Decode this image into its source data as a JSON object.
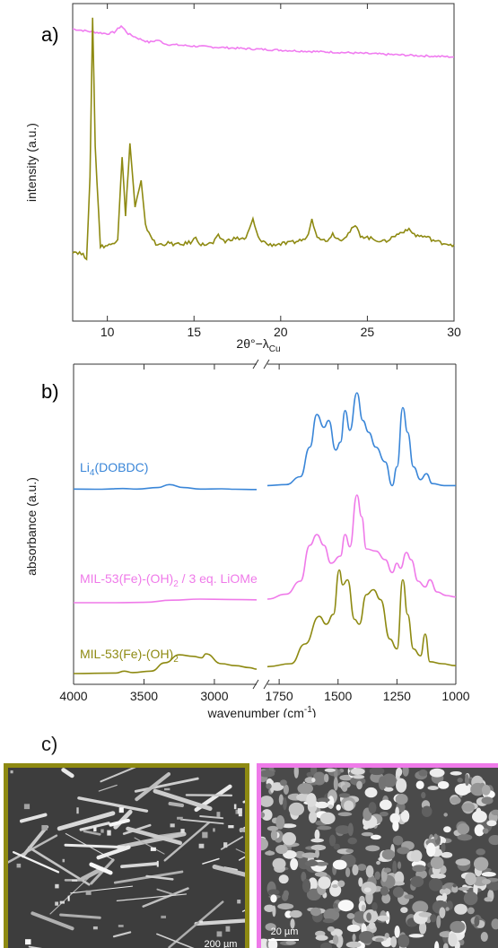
{
  "panel_a": {
    "label": "a)",
    "chart_data": {
      "type": "line",
      "xlabel_main": "2θ°−λ",
      "xlabel_sub": "Cu",
      "ylabel": "intensity (a.u.)",
      "xlim": [
        8,
        30
      ],
      "xticks": [
        10,
        15,
        20,
        25,
        30
      ],
      "series": [
        {
          "color": "#f07cf0",
          "points": [
            [
              8,
              0.92
            ],
            [
              9,
              0.912
            ],
            [
              10,
              0.905
            ],
            [
              10.4,
              0.91
            ],
            [
              10.8,
              0.93
            ],
            [
              11.2,
              0.905
            ],
            [
              11.8,
              0.89
            ],
            [
              12.4,
              0.878
            ],
            [
              12.9,
              0.885
            ],
            [
              13.4,
              0.872
            ],
            [
              15,
              0.866
            ],
            [
              18,
              0.858
            ],
            [
              21,
              0.851
            ],
            [
              24,
              0.845
            ],
            [
              27,
              0.838
            ],
            [
              30,
              0.832
            ]
          ]
        },
        {
          "color": "#8e8a12",
          "points": [
            [
              8,
              0.22
            ],
            [
              8.4,
              0.215
            ],
            [
              8.8,
              0.2
            ],
            [
              9.0,
              0.45
            ],
            [
              9.15,
              0.96
            ],
            [
              9.3,
              0.55
            ],
            [
              9.6,
              0.235
            ],
            [
              10.2,
              0.24
            ],
            [
              10.6,
              0.26
            ],
            [
              10.85,
              0.52
            ],
            [
              11.05,
              0.33
            ],
            [
              11.3,
              0.56
            ],
            [
              11.6,
              0.36
            ],
            [
              11.95,
              0.44
            ],
            [
              12.2,
              0.3
            ],
            [
              12.8,
              0.24
            ],
            [
              13.5,
              0.245
            ],
            [
              14.2,
              0.24
            ],
            [
              14.9,
              0.25
            ],
            [
              15.1,
              0.265
            ],
            [
              15.4,
              0.24
            ],
            [
              16.1,
              0.245
            ],
            [
              16.4,
              0.268
            ],
            [
              16.8,
              0.25
            ],
            [
              17.2,
              0.26
            ],
            [
              18.0,
              0.26
            ],
            [
              18.4,
              0.32
            ],
            [
              18.7,
              0.262
            ],
            [
              19.3,
              0.24
            ],
            [
              20.5,
              0.245
            ],
            [
              21.5,
              0.26
            ],
            [
              21.8,
              0.32
            ],
            [
              22.1,
              0.27
            ],
            [
              22.6,
              0.25
            ],
            [
              23.0,
              0.275
            ],
            [
              23.4,
              0.255
            ],
            [
              23.8,
              0.27
            ],
            [
              24.3,
              0.3
            ],
            [
              24.6,
              0.27
            ],
            [
              25.2,
              0.26
            ],
            [
              26.0,
              0.25
            ],
            [
              26.8,
              0.275
            ],
            [
              27.3,
              0.29
            ],
            [
              27.8,
              0.27
            ],
            [
              28.4,
              0.265
            ],
            [
              29.0,
              0.25
            ],
            [
              29.5,
              0.245
            ],
            [
              30,
              0.24
            ]
          ]
        }
      ]
    }
  },
  "panel_b": {
    "label": "b)",
    "chart_data": {
      "type": "line",
      "xlabel": "wavenumber (cm⁻¹)",
      "xlabel_main": "wavenumber (cm",
      "xlabel_sup": "-1",
      "xlabel_end": ")",
      "ylabel": "absorbance (a.u.)",
      "axis_break": true,
      "left_range": [
        4000,
        2700
      ],
      "right_range": [
        1800,
        1000
      ],
      "left_ticks": [
        4000,
        3500,
        3000
      ],
      "right_ticks": [
        1750,
        1500,
        1250,
        1000
      ],
      "series": [
        {
          "name_main": "Li",
          "name_sub": "4",
          "name_end": "(DOBDC)",
          "color": "#3a86d8",
          "left_points": [
            [
              4000,
              0.05
            ],
            [
              3800,
              0.045
            ],
            [
              3650,
              0.06
            ],
            [
              3550,
              0.05
            ],
            [
              3400,
              0.08
            ],
            [
              3320,
              0.14
            ],
            [
              3220,
              0.08
            ],
            [
              3100,
              0.05
            ],
            [
              2950,
              0.055
            ],
            [
              2850,
              0.045
            ],
            [
              2700,
              0.04
            ]
          ],
          "right_points": [
            [
              1800,
              0.06
            ],
            [
              1720,
              0.07
            ],
            [
              1660,
              0.15
            ],
            [
              1620,
              0.45
            ],
            [
              1590,
              0.78
            ],
            [
              1560,
              0.65
            ],
            [
              1540,
              0.72
            ],
            [
              1510,
              0.42
            ],
            [
              1490,
              0.5
            ],
            [
              1470,
              0.82
            ],
            [
              1450,
              0.62
            ],
            [
              1420,
              1.0
            ],
            [
              1395,
              0.72
            ],
            [
              1370,
              0.6
            ],
            [
              1340,
              0.45
            ],
            [
              1300,
              0.3
            ],
            [
              1270,
              0.06
            ],
            [
              1250,
              0.25
            ],
            [
              1225,
              0.85
            ],
            [
              1205,
              0.6
            ],
            [
              1180,
              0.25
            ],
            [
              1150,
              0.12
            ],
            [
              1125,
              0.18
            ],
            [
              1100,
              0.08
            ],
            [
              1050,
              0.06
            ],
            [
              1000,
              0.06
            ]
          ]
        },
        {
          "name_main": "MIL-53(Fe)-(OH)",
          "name_sub": "2",
          "name_end": " / 3 eq. LiOMe",
          "color": "#ef7ae9",
          "left_points": [
            [
              4000,
              0.0
            ],
            [
              3700,
              0.0
            ],
            [
              3500,
              0.01
            ],
            [
              3300,
              0.07
            ],
            [
              3100,
              0.1
            ],
            [
              2900,
              0.09
            ],
            [
              2700,
              0.08
            ]
          ],
          "right_points": [
            [
              1800,
              0.05
            ],
            [
              1720,
              0.12
            ],
            [
              1660,
              0.3
            ],
            [
              1620,
              0.8
            ],
            [
              1590,
              0.95
            ],
            [
              1560,
              0.8
            ],
            [
              1530,
              0.55
            ],
            [
              1490,
              0.65
            ],
            [
              1470,
              0.95
            ],
            [
              1450,
              0.78
            ],
            [
              1420,
              1.5
            ],
            [
              1400,
              1.2
            ],
            [
              1380,
              0.75
            ],
            [
              1340,
              0.72
            ],
            [
              1300,
              0.6
            ],
            [
              1270,
              0.42
            ],
            [
              1250,
              0.55
            ],
            [
              1235,
              0.48
            ],
            [
              1210,
              0.7
            ],
            [
              1190,
              0.6
            ],
            [
              1160,
              0.3
            ],
            [
              1130,
              0.22
            ],
            [
              1110,
              0.32
            ],
            [
              1080,
              0.15
            ],
            [
              1040,
              0.1
            ],
            [
              1000,
              0.08
            ]
          ]
        },
        {
          "name_main": "MIL-53(Fe)-(OH)",
          "name_sub": "2",
          "name_end": "",
          "color": "#8e8a12",
          "left_points": [
            [
              4000,
              0.0
            ],
            [
              3700,
              0.01
            ],
            [
              3640,
              0.05
            ],
            [
              3580,
              0.02
            ],
            [
              3450,
              0.05
            ],
            [
              3350,
              0.22
            ],
            [
              3250,
              0.38
            ],
            [
              3150,
              0.35
            ],
            [
              3090,
              0.32
            ],
            [
              3060,
              0.4
            ],
            [
              2950,
              0.2
            ],
            [
              2850,
              0.16
            ],
            [
              2750,
              0.12
            ],
            [
              2700,
              0.09
            ]
          ],
          "right_points": [
            [
              1800,
              0.07
            ],
            [
              1700,
              0.1
            ],
            [
              1640,
              0.3
            ],
            [
              1580,
              0.58
            ],
            [
              1550,
              0.5
            ],
            [
              1520,
              0.6
            ],
            [
              1495,
              1.05
            ],
            [
              1480,
              0.9
            ],
            [
              1460,
              0.95
            ],
            [
              1430,
              0.55
            ],
            [
              1410,
              0.5
            ],
            [
              1380,
              0.8
            ],
            [
              1350,
              0.85
            ],
            [
              1320,
              0.75
            ],
            [
              1280,
              0.35
            ],
            [
              1250,
              0.25
            ],
            [
              1225,
              0.95
            ],
            [
              1205,
              0.6
            ],
            [
              1180,
              0.25
            ],
            [
              1150,
              0.18
            ],
            [
              1130,
              0.4
            ],
            [
              1110,
              0.12
            ],
            [
              1060,
              0.1
            ],
            [
              1000,
              0.08
            ]
          ]
        }
      ]
    }
  },
  "panel_c": {
    "label": "c)",
    "left_scale": "200 µm",
    "right_scale": "20 µm",
    "left_frame_color": "#8e8a12",
    "right_frame_color": "#ef7ae9"
  }
}
